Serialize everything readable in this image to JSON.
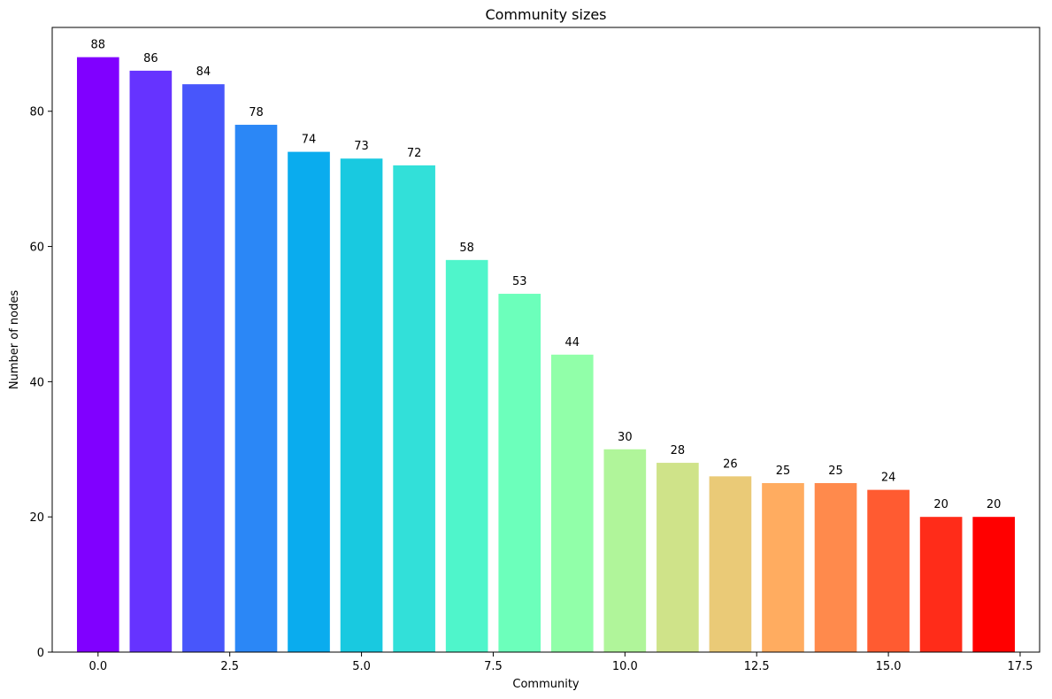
{
  "chart_data": {
    "type": "bar",
    "title": "Community sizes",
    "xlabel": "Community",
    "ylabel": "Number of nodes",
    "x": [
      0,
      1,
      2,
      3,
      4,
      5,
      6,
      7,
      8,
      9,
      10,
      11,
      12,
      13,
      14,
      15,
      16,
      17
    ],
    "values": [
      88,
      86,
      84,
      78,
      74,
      73,
      72,
      58,
      53,
      44,
      30,
      28,
      26,
      25,
      25,
      24,
      20,
      20
    ],
    "colors": [
      "#8000ff",
      "#6633ff",
      "#4856fb",
      "#2b87f6",
      "#0aacee",
      "#19c9e0",
      "#32e0d9",
      "#4ff5cb",
      "#6cffbb",
      "#91ffa9",
      "#b0f59a",
      "#cfe389",
      "#eaca77",
      "#ffac60",
      "#ff8a4c",
      "#ff5b31",
      "#ff2c19",
      "#ff0000"
    ],
    "xlim": [
      -0.87,
      17.87
    ],
    "ylim": [
      0,
      92.4
    ],
    "xticks": [
      0.0,
      2.5,
      5.0,
      7.5,
      10.0,
      12.5,
      15.0,
      17.5
    ],
    "xtick_labels": [
      "0.0",
      "2.5",
      "5.0",
      "7.5",
      "10.0",
      "12.5",
      "15.0",
      "17.5"
    ],
    "yticks": [
      0,
      20,
      40,
      60,
      80
    ],
    "ytick_labels": [
      "0",
      "20",
      "40",
      "60",
      "80"
    ],
    "grid": false,
    "legend": false
  }
}
